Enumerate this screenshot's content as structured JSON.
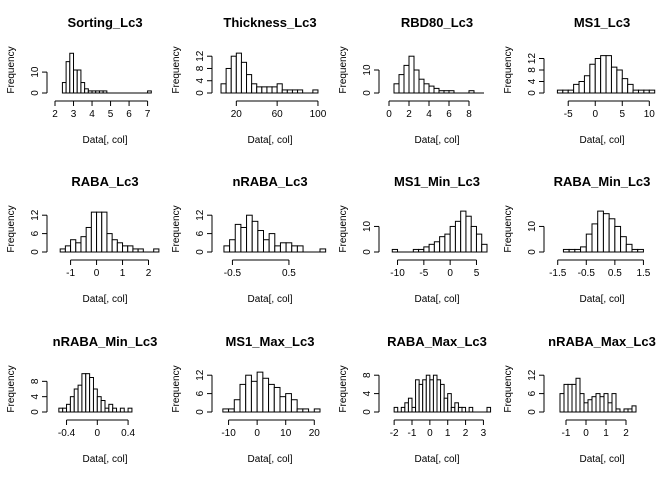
{
  "chart_data": [
    {
      "type": "bar",
      "title": "Sorting_Lc3",
      "xlabel": "Data[, col]",
      "ylabel": "Frequency",
      "x_ticks": [
        2,
        3,
        4,
        5,
        6,
        7
      ],
      "y_ticks": [
        0,
        10
      ],
      "xlim": [
        2,
        7.4
      ],
      "ylim": [
        0,
        22
      ],
      "bin_start": 2.4,
      "bin_width": 0.2,
      "counts": [
        5,
        15,
        19,
        11,
        11,
        5,
        2,
        1,
        1,
        1,
        1,
        1,
        0,
        0,
        0,
        0,
        0,
        0,
        0,
        0,
        0,
        0,
        0,
        1
      ]
    },
    {
      "type": "bar",
      "title": "Thickness_Lc3",
      "xlabel": "Data[, col]",
      "ylabel": "Frequency",
      "x_ticks": [
        20,
        60,
        100
      ],
      "y_ticks": [
        0,
        4,
        8,
        12
      ],
      "xlim": [
        4,
        102
      ],
      "ylim": [
        0,
        15
      ],
      "bin_start": 5,
      "bin_width": 5,
      "counts": [
        3,
        8,
        12,
        13,
        10,
        6,
        3,
        2,
        2,
        2,
        2,
        3,
        1,
        1,
        1,
        1,
        0,
        0,
        1
      ]
    },
    {
      "type": "bar",
      "title": "RBD80_Lc3",
      "xlabel": "Data[, col]",
      "ylabel": "Frequency",
      "x_ticks": [
        0,
        2,
        4,
        6,
        8
      ],
      "y_ticks": [
        0,
        10
      ],
      "xlim": [
        -0.2,
        9.8
      ],
      "ylim": [
        0,
        20
      ],
      "bin_start": 0.5,
      "bin_width": 0.5,
      "counts": [
        4,
        8,
        12,
        16,
        10,
        6,
        4,
        3,
        2,
        1,
        1,
        1,
        0,
        0,
        0,
        1,
        0,
        0
      ]
    },
    {
      "type": "bar",
      "title": "MS1_Lc3",
      "xlabel": "Data[, col]",
      "ylabel": "Frequency",
      "x_ticks": [
        -5,
        0,
        5,
        10
      ],
      "y_ticks": [
        0,
        4,
        8,
        12
      ],
      "xlim": [
        -8,
        10.5
      ],
      "ylim": [
        0,
        16
      ],
      "bin_start": -7,
      "bin_width": 1,
      "counts": [
        1,
        1,
        1,
        3,
        4,
        6,
        10,
        12,
        13,
        13,
        9,
        8,
        5,
        3,
        1,
        1,
        1,
        1
      ]
    },
    {
      "type": "bar",
      "title": "RABA_Lc3",
      "xlabel": "Data[, col]",
      "ylabel": "Frequency",
      "x_ticks": [
        -1,
        0,
        1,
        2
      ],
      "y_ticks": [
        0,
        6,
        12
      ],
      "xlim": [
        -1.6,
        2.25
      ],
      "ylim": [
        0,
        15
      ],
      "bin_start": -1.4,
      "bin_width": 0.2,
      "counts": [
        1,
        2,
        4,
        3,
        5,
        8,
        13,
        13,
        13,
        6,
        4,
        3,
        2,
        2,
        1,
        1,
        0,
        0,
        1
      ]
    },
    {
      "type": "bar",
      "title": "nRABA_Lc3",
      "xlabel": "Data[, col]",
      "ylabel": "Frequency",
      "x_ticks": [
        -0.5,
        0.5
      ],
      "y_ticks": [
        0,
        6,
        12
      ],
      "xlim": [
        -0.72,
        1.05
      ],
      "ylim": [
        0,
        15
      ],
      "bin_start": -0.65,
      "bin_width": 0.1,
      "counts": [
        2,
        4,
        9,
        8,
        12,
        10,
        7,
        4,
        6,
        2,
        3,
        3,
        2,
        2,
        0,
        0,
        0,
        1
      ]
    },
    {
      "type": "bar",
      "title": "MS1_Min_Lc3",
      "xlabel": "Data[, col]",
      "ylabel": "Frequency",
      "x_ticks": [
        -10,
        -5,
        0,
        5
      ],
      "y_ticks": [
        0,
        10
      ],
      "xlim": [
        -12,
        7
      ],
      "ylim": [
        0,
        18
      ],
      "bin_start": -11,
      "bin_width": 1,
      "counts": [
        1,
        0,
        0,
        0,
        1,
        1,
        2,
        3,
        4,
        6,
        7,
        10,
        12,
        16,
        14,
        10,
        7,
        3
      ]
    },
    {
      "type": "bar",
      "title": "RABA_Min_Lc3",
      "xlabel": "Data[, col]",
      "ylabel": "Frequency",
      "x_ticks": [
        -1.5,
        -0.5,
        0.5,
        1.5
      ],
      "y_ticks": [
        0,
        10
      ],
      "xlim": [
        -1.7,
        1.8
      ],
      "ylim": [
        0,
        18
      ],
      "bin_start": -1.3,
      "bin_width": 0.2,
      "counts": [
        1,
        1,
        1,
        2,
        7,
        11,
        16,
        15,
        13,
        10,
        6,
        3,
        1,
        1
      ]
    },
    {
      "type": "bar",
      "title": "nRABA_Min_Lc3",
      "xlabel": "Data[, col]",
      "ylabel": "Frequency",
      "x_ticks": [
        -0.4,
        0,
        0.4
      ],
      "y_ticks": [
        0,
        4,
        8
      ],
      "xlim": [
        -0.55,
        0.75
      ],
      "ylim": [
        0,
        12
      ],
      "bin_start": -0.5,
      "bin_width": 0.05,
      "counts": [
        1,
        1,
        2,
        4,
        6,
        7,
        10,
        10,
        9,
        6,
        4,
        3,
        1,
        2,
        1,
        0,
        1,
        0,
        1
      ]
    },
    {
      "type": "bar",
      "title": "MS1_Max_Lc3",
      "xlabel": "Data[, col]",
      "ylabel": "Frequency",
      "x_ticks": [
        -10,
        0,
        10,
        20
      ],
      "y_ticks": [
        0,
        6,
        12
      ],
      "xlim": [
        -13,
        22
      ],
      "ylim": [
        0,
        15
      ],
      "bin_start": -12,
      "bin_width": 2,
      "counts": [
        1,
        1,
        4,
        9,
        12,
        10,
        13,
        11,
        9,
        8,
        5,
        6,
        4,
        1,
        1,
        0,
        1
      ]
    },
    {
      "type": "bar",
      "title": "RABA_Max_Lc3",
      "xlabel": "Data[, col]",
      "ylabel": "Frequency",
      "x_ticks": [
        -2,
        -1,
        0,
        1,
        2,
        3
      ],
      "y_ticks": [
        0,
        4,
        8
      ],
      "xlim": [
        -2.4,
        3.2
      ],
      "ylim": [
        0,
        10
      ],
      "bin_start": -2,
      "bin_width": 0.2,
      "counts": [
        1,
        0,
        1,
        2,
        3,
        1,
        7,
        6,
        7,
        8,
        7,
        8,
        7,
        6,
        3,
        4,
        1,
        2,
        1,
        1,
        0,
        1,
        0,
        0,
        0,
        0,
        1
      ]
    },
    {
      "type": "bar",
      "title": "nRABA_Max_Lc3",
      "xlabel": "Data[, col]",
      "ylabel": "Frequency",
      "x_ticks": [
        -1,
        0,
        1,
        2
      ],
      "y_ticks": [
        0,
        6,
        12
      ],
      "xlim": [
        -1.7,
        3.3
      ],
      "ylim": [
        0,
        15
      ],
      "bin_start": -1.3,
      "bin_width": 0.2,
      "counts": [
        6,
        9,
        9,
        9,
        11,
        6,
        3,
        4,
        5,
        6,
        5,
        6,
        3,
        6,
        1,
        0,
        1,
        1,
        2
      ]
    }
  ]
}
